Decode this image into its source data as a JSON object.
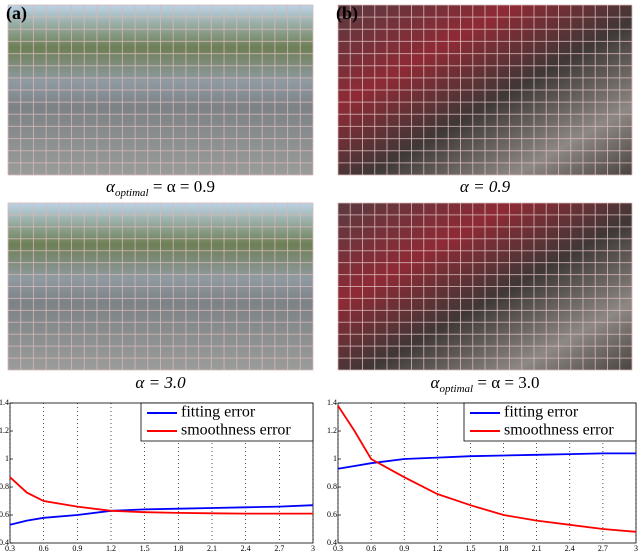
{
  "panels": [
    {
      "label": "(a)",
      "captions": [
        {
          "main": "α",
          "sub": "optimal",
          "tail": " = α = 0.9"
        },
        {
          "main": "α = 3.0"
        }
      ],
      "chart": {
        "type": "line",
        "x": [
          0.3,
          0.45,
          0.6,
          0.9,
          1.2,
          1.5,
          1.8,
          2.1,
          2.4,
          2.7,
          3
        ],
        "series": [
          {
            "name": "fitting error",
            "color": "#0000ff",
            "values": [
              0.53,
              0.56,
              0.58,
              0.6,
              0.63,
              0.64,
              0.645,
              0.65,
              0.655,
              0.66,
              0.67
            ]
          },
          {
            "name": "smoothness error",
            "color": "#ff0000",
            "values": [
              0.87,
              0.76,
              0.7,
              0.66,
              0.63,
              0.62,
              0.615,
              0.612,
              0.61,
              0.61,
              0.61
            ]
          }
        ],
        "xlim": [
          0.3,
          3
        ],
        "ylim": [
          0.4,
          1.4
        ],
        "xticks": [
          0.3,
          0.6,
          0.9,
          1.2,
          1.5,
          1.8,
          2.1,
          2.4,
          2.7,
          3
        ],
        "yticks": [
          0.4,
          0.6,
          0.8,
          1,
          1.2,
          1.4
        ],
        "grid": "x",
        "legend": "upper-right"
      }
    },
    {
      "label": "(b)",
      "captions": [
        {
          "main": "α = 0.9"
        },
        {
          "main": "α",
          "sub": "optimal",
          "tail": " = α = 3.0"
        }
      ],
      "chart": {
        "type": "line",
        "x": [
          0.3,
          0.45,
          0.6,
          0.9,
          1.2,
          1.5,
          1.8,
          2.1,
          2.4,
          2.7,
          3
        ],
        "series": [
          {
            "name": "fitting error",
            "color": "#0000ff",
            "values": [
              0.93,
              0.95,
              0.97,
              1.0,
              1.01,
              1.02,
              1.025,
              1.03,
              1.035,
              1.04,
              1.04
            ]
          },
          {
            "name": "smoothness error",
            "color": "#ff0000",
            "values": [
              1.38,
              1.2,
              1.0,
              0.87,
              0.75,
              0.67,
              0.6,
              0.56,
              0.53,
              0.5,
              0.48
            ]
          }
        ],
        "xlim": [
          0.3,
          3
        ],
        "ylim": [
          0.4,
          1.4
        ],
        "xticks": [
          0.3,
          0.6,
          0.9,
          1.2,
          1.5,
          1.8,
          2.1,
          2.4,
          2.7,
          3
        ],
        "yticks": [
          0.4,
          0.6,
          0.8,
          1,
          1.2,
          1.4
        ],
        "grid": "x",
        "legend": "upper-right"
      }
    }
  ]
}
